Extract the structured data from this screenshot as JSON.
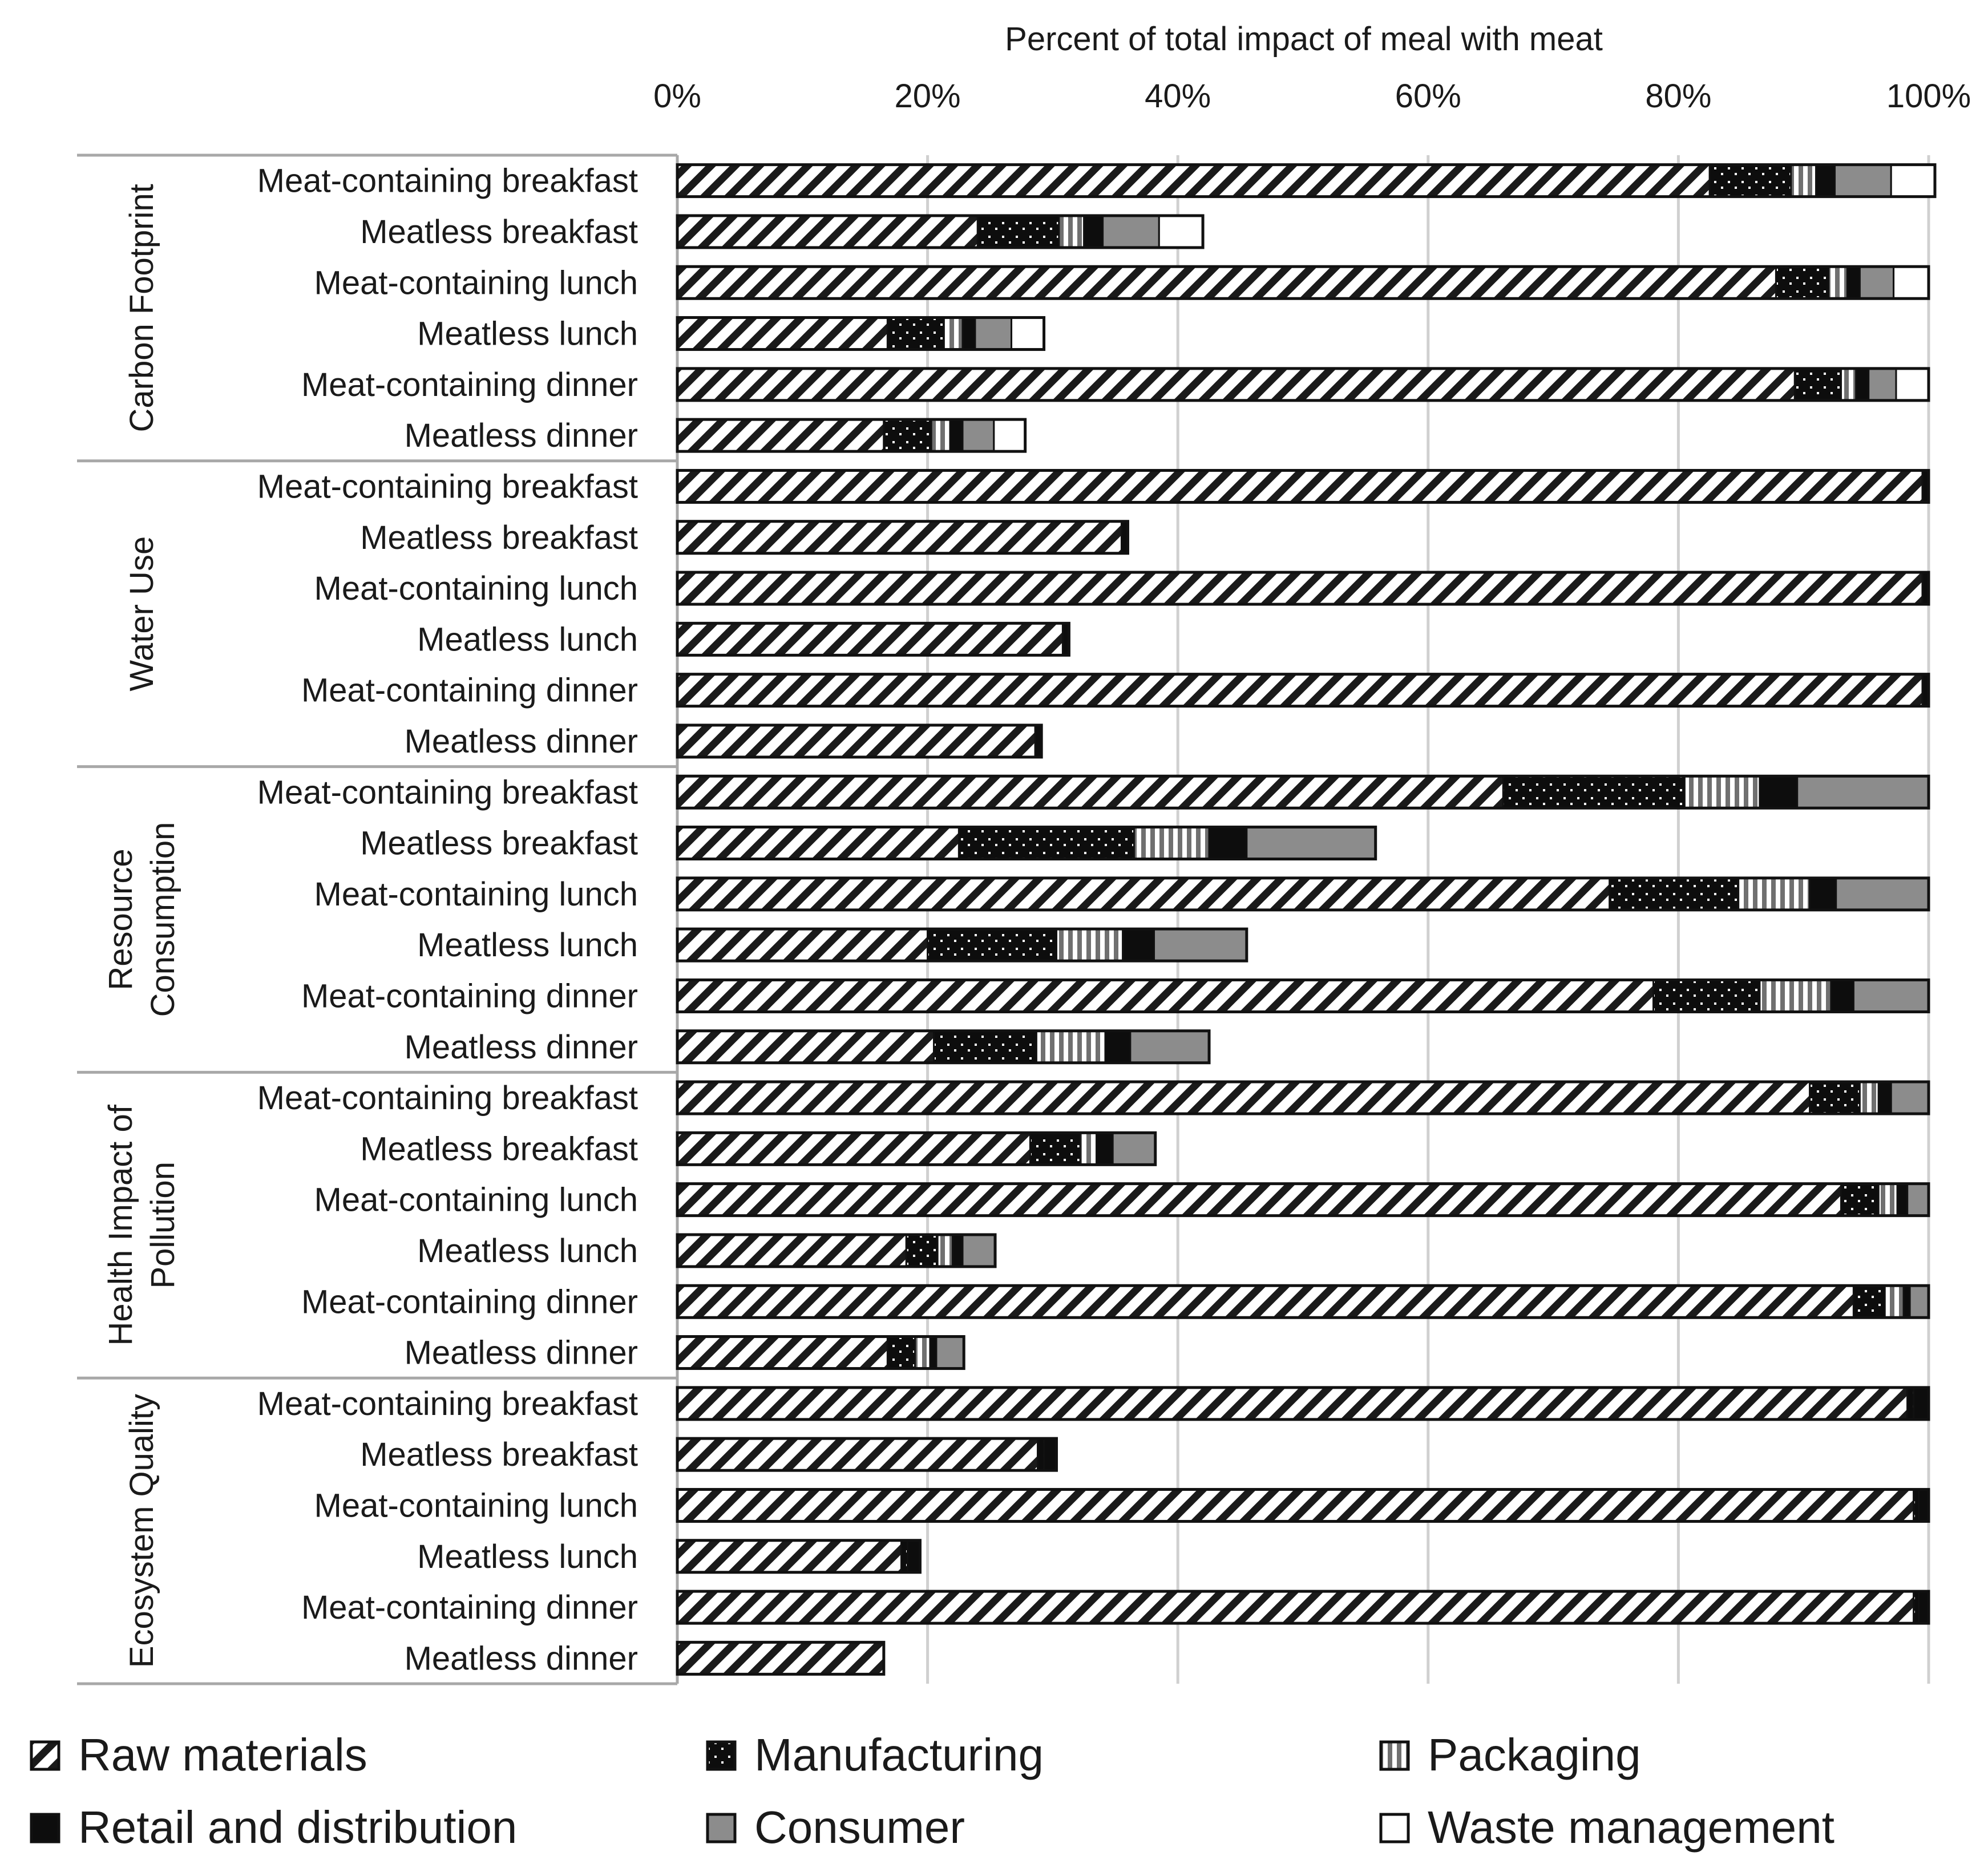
{
  "chart_data": {
    "type": "bar",
    "orientation": "horizontal",
    "stacked": true,
    "title": "Percent of total impact of meal with meat",
    "xlabel": "Percent of total impact of meal with meat",
    "ylabel": "",
    "xlim": [
      0,
      100
    ],
    "x_ticks": [
      "0%",
      "20%",
      "40%",
      "60%",
      "80%",
      "100%"
    ],
    "x_tick_values": [
      0,
      20,
      40,
      60,
      80,
      100
    ],
    "grid": true,
    "legend_position": "bottom",
    "segment_names": [
      "Raw materials",
      "Manufacturing",
      "Packaging",
      "Retail and distribution",
      "Consumer",
      "Waste management"
    ],
    "legend": {
      "items": [
        {
          "key": "raw",
          "label": "Raw materials",
          "pattern": "diagonal-hatch"
        },
        {
          "key": "manufacturing",
          "label": "Manufacturing",
          "pattern": "black-dots"
        },
        {
          "key": "packaging",
          "label": "Packaging",
          "pattern": "vertical-stripes"
        },
        {
          "key": "retail",
          "label": "Retail and distribution",
          "pattern": "solid-black"
        },
        {
          "key": "consumer",
          "label": "Consumer",
          "pattern": "solid-gray"
        },
        {
          "key": "waste",
          "label": "Waste management",
          "pattern": "white"
        }
      ]
    },
    "colors": {
      "hatch": "#1a1a1a",
      "black": "#0d0d0d",
      "gray": "#8c8c8c",
      "white": "#ffffff",
      "grid": "#d0d0d0",
      "frame": "#a8a8a8"
    },
    "groups": [
      {
        "name": "Carbon Footprint",
        "label_lines": [
          "Carbon Footprint"
        ],
        "rows": [
          {
            "label": "Meat-containing breakfast",
            "values": [
              82.5,
              6.5,
              2.0,
              1.5,
              4.5,
              3.5
            ]
          },
          {
            "label": "Meatless breakfast",
            "values": [
              24.0,
              6.5,
              2.0,
              1.5,
              4.5,
              3.5
            ]
          },
          {
            "label": "Meat-containing lunch",
            "values": [
              87.8,
              4.2,
              1.5,
              1.0,
              2.7,
              2.8
            ]
          },
          {
            "label": "Meatless lunch",
            "values": [
              16.8,
              4.5,
              1.5,
              1.0,
              2.9,
              2.6
            ]
          },
          {
            "label": "Meat-containing dinner",
            "values": [
              89.3,
              3.7,
              1.2,
              1.0,
              2.2,
              2.6
            ]
          },
          {
            "label": "Meatless dinner",
            "values": [
              16.5,
              3.8,
              1.5,
              1.0,
              2.5,
              2.5
            ]
          }
        ]
      },
      {
        "name": "Water Use",
        "label_lines": [
          "Water Use"
        ],
        "rows": [
          {
            "label": "Meat-containing breakfast",
            "values": [
              99.5,
              0,
              0,
              0.5,
              0,
              0
            ]
          },
          {
            "label": "Meatless breakfast",
            "values": [
              35.5,
              0,
              0,
              0.5,
              0,
              0
            ]
          },
          {
            "label": "Meat-containing lunch",
            "values": [
              99.5,
              0,
              0,
              0.5,
              0,
              0
            ]
          },
          {
            "label": "Meatless lunch",
            "values": [
              30.8,
              0,
              0,
              0.5,
              0,
              0
            ]
          },
          {
            "label": "Meat-containing dinner",
            "values": [
              99.5,
              0,
              0,
              0.5,
              0,
              0
            ]
          },
          {
            "label": "Meatless dinner",
            "values": [
              28.6,
              0,
              0,
              0.5,
              0,
              0
            ]
          }
        ]
      },
      {
        "name": "Resource Consumption",
        "label_lines": [
          "Resource",
          "Consumption"
        ],
        "rows": [
          {
            "label": "Meat-containing breakfast",
            "values": [
              66.0,
              14.5,
              6.0,
              3.0,
              10.5,
              0
            ]
          },
          {
            "label": "Meatless breakfast",
            "values": [
              22.5,
              14.0,
              6.0,
              3.0,
              10.3,
              0
            ]
          },
          {
            "label": "Meat-containing lunch",
            "values": [
              74.5,
              10.3,
              5.7,
              2.1,
              7.4,
              0
            ]
          },
          {
            "label": "Meatless lunch",
            "values": [
              20.0,
              10.3,
              5.3,
              2.5,
              7.4,
              0
            ]
          },
          {
            "label": "Meat-containing dinner",
            "values": [
              78.0,
              8.5,
              5.7,
              1.8,
              6.0,
              0
            ]
          },
          {
            "label": "Meatless dinner",
            "values": [
              20.5,
              8.2,
              5.5,
              2.0,
              6.3,
              0
            ]
          }
        ]
      },
      {
        "name": "Health Impact of Pollution",
        "label_lines": [
          "Health Impact of",
          "Pollution"
        ],
        "rows": [
          {
            "label": "Meat-containing breakfast",
            "values": [
              90.5,
              4.0,
              1.5,
              1.0,
              3.0,
              0
            ]
          },
          {
            "label": "Meatless breakfast",
            "values": [
              28.2,
              4.0,
              1.3,
              1.3,
              3.4,
              0
            ]
          },
          {
            "label": "Meat-containing lunch",
            "values": [
              93.0,
              3.0,
              1.5,
              0.8,
              1.7,
              0
            ]
          },
          {
            "label": "Meatless lunch",
            "values": [
              18.3,
              2.5,
              1.2,
              0.8,
              2.6,
              0
            ]
          },
          {
            "label": "Meat-containing dinner",
            "values": [
              94.0,
              2.5,
              1.5,
              0.5,
              1.5,
              0
            ]
          },
          {
            "label": "Meatless dinner",
            "values": [
              16.8,
              2.2,
              1.2,
              0.5,
              2.2,
              0
            ]
          }
        ]
      },
      {
        "name": "Ecosystem Quality",
        "label_lines": [
          "Ecosystem Quality"
        ],
        "rows": [
          {
            "label": "Meat-containing breakfast",
            "values": [
              98.3,
              0.5,
              0,
              1.2,
              0,
              0
            ]
          },
          {
            "label": "Meatless breakfast",
            "values": [
              28.8,
              0.5,
              0,
              1.0,
              0,
              0
            ]
          },
          {
            "label": "Meat-containing lunch",
            "values": [
              98.8,
              0.4,
              0,
              0.8,
              0,
              0
            ]
          },
          {
            "label": "Meatless lunch",
            "values": [
              17.9,
              0.5,
              0,
              1.0,
              0,
              0
            ]
          },
          {
            "label": "Meat-containing dinner",
            "values": [
              98.8,
              0.4,
              0,
              0.8,
              0,
              0
            ]
          },
          {
            "label": "Meatless dinner",
            "values": [
              16.5,
              0,
              0,
              0,
              0,
              0
            ]
          }
        ]
      }
    ]
  }
}
